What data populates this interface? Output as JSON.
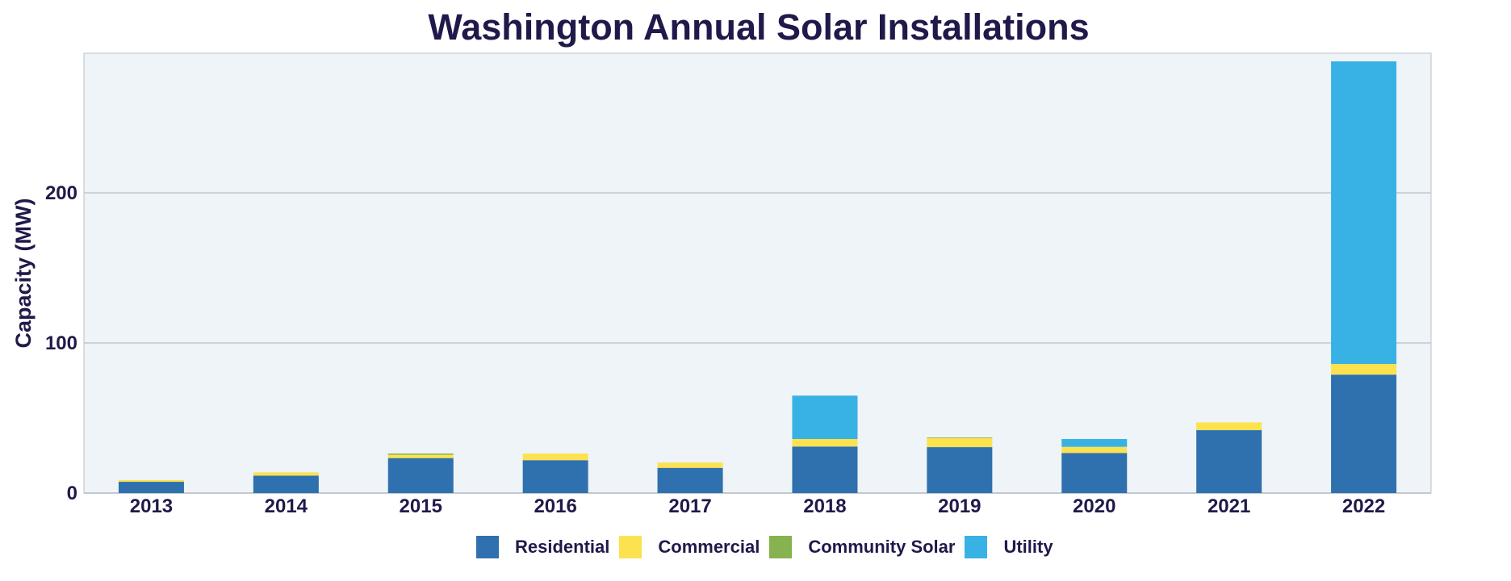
{
  "chart_data": {
    "type": "bar",
    "stacked": true,
    "title": "Washington Annual Solar Installations",
    "xlabel": "",
    "ylabel": "Capacity (MW)",
    "ylim": [
      0,
      293
    ],
    "yticks": [
      0,
      100,
      200
    ],
    "grid": true,
    "legend_position": "bottom",
    "categories": [
      "2013",
      "2014",
      "2015",
      "2016",
      "2017",
      "2018",
      "2019",
      "2020",
      "2021",
      "2022"
    ],
    "series": [
      {
        "name": "Residential",
        "color": "#2f70ae",
        "values": [
          7.5,
          11.6,
          23.3,
          21.9,
          16.8,
          31.0,
          30.6,
          26.7,
          41.9,
          78.9
        ]
      },
      {
        "name": "Commercial",
        "color": "#fde24f",
        "values": [
          1.1,
          2.2,
          2.2,
          4.4,
          3.5,
          5.0,
          6.1,
          4.1,
          5.2,
          7.1
        ]
      },
      {
        "name": "Community Solar",
        "color": "#86b24f",
        "values": [
          0,
          0,
          0.8,
          0,
          0,
          0,
          0.4,
          0,
          0,
          0
        ]
      },
      {
        "name": "Utility",
        "color": "#38b2e4",
        "values": [
          0,
          0,
          0,
          0,
          0,
          28.9,
          0,
          5.2,
          0,
          201.6
        ]
      }
    ]
  }
}
